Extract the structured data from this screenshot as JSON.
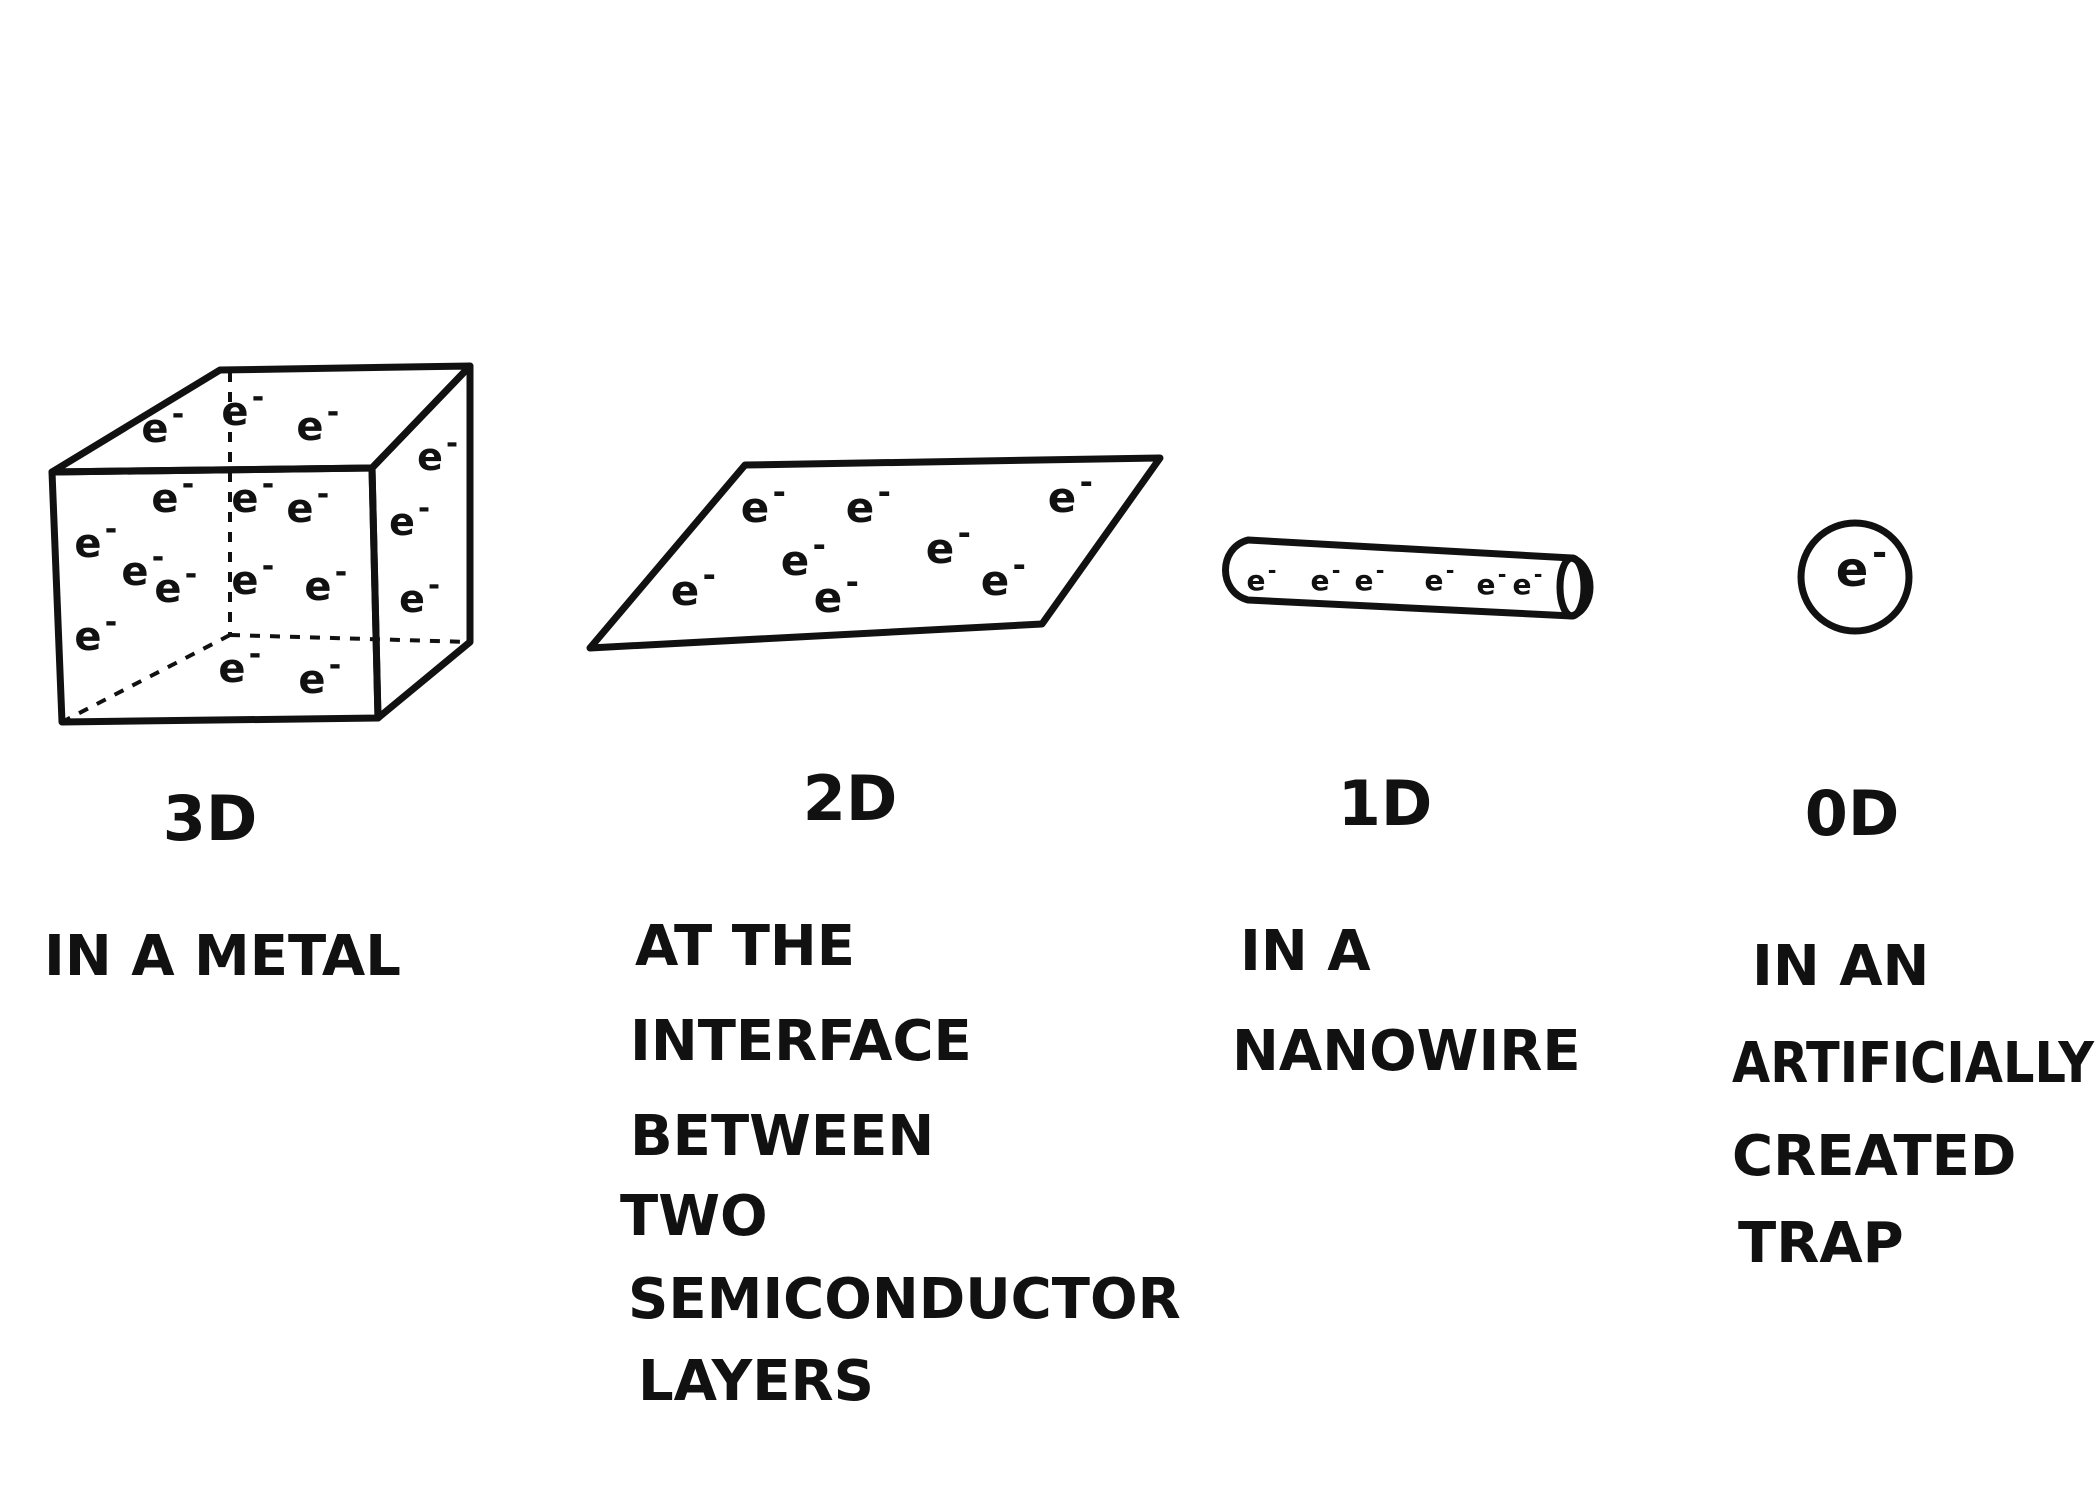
{
  "electron_symbol": "e",
  "electron_charge": "-",
  "panels": [
    {
      "id": "3d",
      "dimension": "3D",
      "description": [
        "IN A METAL"
      ]
    },
    {
      "id": "2d",
      "dimension": "2D",
      "description": [
        "AT THE",
        "INTERFACE",
        "BETWEEN",
        "TWO",
        "SEMICONDUCTOR",
        "LAYERS"
      ]
    },
    {
      "id": "1d",
      "dimension": "1D",
      "description": [
        "IN A",
        "NANOWIRE"
      ]
    },
    {
      "id": "0d",
      "dimension": "0D",
      "description": [
        "IN AN",
        "ARTIFICIALLY",
        "CREATED",
        "TRAP"
      ]
    }
  ]
}
